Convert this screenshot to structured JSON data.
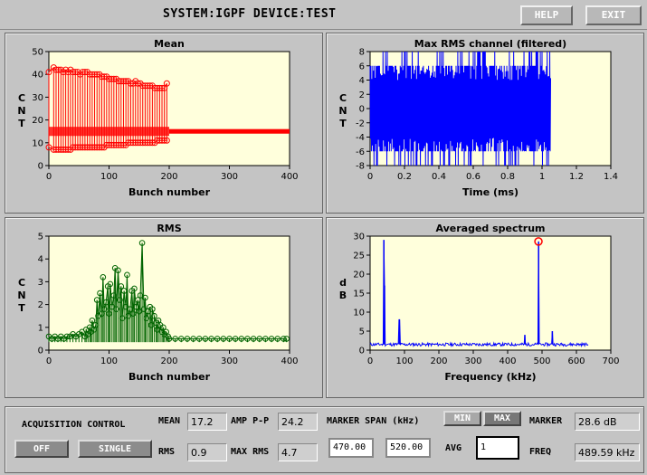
{
  "header": {
    "title": "SYSTEM:IGPF DEVICE:TEST",
    "help_label": "HELP",
    "exit_label": "EXIT"
  },
  "chart_data": [
    {
      "type": "line",
      "title": "Mean",
      "xlabel": "Bunch number",
      "ylabel": "CNT",
      "xlim": [
        0,
        400
      ],
      "ylim": [
        0,
        50
      ],
      "xticks": [
        0,
        100,
        200,
        300,
        400
      ],
      "yticks": [
        0,
        10,
        20,
        30,
        40,
        50
      ],
      "series": [
        {
          "x": [
            0,
            8,
            12,
            16,
            20,
            24,
            28,
            32,
            36,
            40,
            44,
            48,
            52,
            56,
            60,
            64,
            68,
            72,
            76,
            80,
            84,
            88,
            92,
            96,
            100,
            104,
            108,
            112,
            116,
            120,
            124,
            128,
            132,
            136,
            140,
            144,
            148,
            152,
            156,
            160,
            164,
            168,
            172,
            176,
            180,
            184,
            188,
            192,
            196
          ],
          "upper": [
            41,
            43,
            42,
            42,
            42,
            41,
            42,
            41,
            42,
            41,
            41,
            41,
            40,
            41,
            41,
            41,
            40,
            40,
            40,
            40,
            40,
            39,
            39,
            39,
            38,
            38,
            38,
            38,
            37,
            37,
            37,
            37,
            37,
            36,
            36,
            37,
            36,
            36,
            35,
            35,
            35,
            35,
            35,
            34,
            34,
            34,
            34,
            34,
            36
          ],
          "lower": [
            8,
            7,
            7,
            7,
            7,
            7,
            7,
            7,
            7,
            8,
            8,
            8,
            8,
            8,
            8,
            8,
            8,
            8,
            8,
            8,
            8,
            8,
            8,
            9,
            9,
            9,
            9,
            9,
            9,
            9,
            9,
            9,
            10,
            10,
            10,
            10,
            10,
            10,
            10,
            10,
            10,
            10,
            10,
            10,
            11,
            11,
            11,
            11,
            11
          ]
        }
      ],
      "baseline": 15,
      "tail_x": [
        200,
        400
      ],
      "tail_value": 15
    },
    {
      "type": "line",
      "title": "Max RMS channel (filtered)",
      "xlabel": "Time (ms)",
      "ylabel": "CNT",
      "xlim": [
        0,
        1.4
      ],
      "ylim": [
        -8,
        8
      ],
      "xticks": [
        0,
        0.2,
        0.4,
        0.6,
        0.8,
        1,
        1.2,
        1.4
      ],
      "yticks": [
        -8,
        -6,
        -4,
        -2,
        0,
        2,
        4,
        6,
        8
      ],
      "signal_range": [
        0,
        1.05
      ],
      "amplitude": 8
    },
    {
      "type": "line",
      "title": "RMS",
      "xlabel": "Bunch number",
      "ylabel": "CNT",
      "xlim": [
        0,
        400
      ],
      "ylim": [
        0,
        5
      ],
      "xticks": [
        0,
        100,
        200,
        300,
        400
      ],
      "yticks": [
        0,
        1,
        2,
        3,
        4,
        5
      ],
      "series": [
        {
          "x": [
            0,
            5,
            10,
            15,
            20,
            25,
            30,
            35,
            40,
            45,
            50,
            55,
            60,
            62,
            65,
            68,
            70,
            72,
            75,
            78,
            80,
            82,
            85,
            88,
            90,
            92,
            95,
            98,
            100,
            102,
            105,
            108,
            110,
            112,
            115,
            118,
            120,
            122,
            125,
            128,
            130,
            132,
            135,
            138,
            140,
            142,
            145,
            148,
            150,
            152,
            155,
            158,
            160,
            162,
            165,
            168,
            170,
            172,
            175,
            178,
            180,
            182,
            185,
            188,
            190,
            192,
            195,
            198,
            200,
            210,
            220,
            230,
            240,
            250,
            260,
            270,
            280,
            290,
            300,
            310,
            320,
            330,
            340,
            350,
            360,
            370,
            380,
            390,
            395
          ],
          "values": [
            0.6,
            0.5,
            0.6,
            0.5,
            0.6,
            0.5,
            0.6,
            0.6,
            0.7,
            0.6,
            0.7,
            0.8,
            0.6,
            0.9,
            0.7,
            1.0,
            0.8,
            1.3,
            0.9,
            1.1,
            2.2,
            1.5,
            2.5,
            1.6,
            3.2,
            1.8,
            2.1,
            2.8,
            1.6,
            2.9,
            1.9,
            2.4,
            3.6,
            1.8,
            3.5,
            2.2,
            2.8,
            1.4,
            2.6,
            1.9,
            3.3,
            1.5,
            1.8,
            2.6,
            1.6,
            2.7,
            1.9,
            2.2,
            1.7,
            2.4,
            4.7,
            1.8,
            2.3,
            1.4,
            1.7,
            1.9,
            1.1,
            1.8,
            1.5,
            1.2,
            0.9,
            1.3,
            1.1,
            0.8,
            1.0,
            0.7,
            0.8,
            0.6,
            0.5,
            0.5,
            0.5,
            0.5,
            0.5,
            0.5,
            0.5,
            0.5,
            0.5,
            0.5,
            0.5,
            0.5,
            0.5,
            0.5,
            0.5,
            0.5,
            0.5,
            0.5,
            0.5,
            0.5,
            0.5
          ]
        }
      ]
    },
    {
      "type": "line",
      "title": "Averaged spectrum",
      "xlabel": "Frequency (kHz)",
      "ylabel": "dB",
      "xlim": [
        0,
        700
      ],
      "ylim": [
        0,
        30
      ],
      "xticks": [
        0,
        100,
        200,
        300,
        400,
        500,
        600,
        700
      ],
      "yticks": [
        0,
        5,
        10,
        15,
        20,
        25,
        30
      ],
      "noise_floor": 1.5,
      "noise_range": [
        0,
        635
      ],
      "peaks": [
        {
          "x": 40,
          "y": 29
        },
        {
          "x": 42,
          "y": 17
        },
        {
          "x": 85,
          "y": 8
        },
        {
          "x": 450,
          "y": 4
        },
        {
          "x": 490,
          "y": 28.6
        },
        {
          "x": 530,
          "y": 5
        }
      ],
      "marker": {
        "x": 489.59,
        "y": 28.6
      }
    }
  ],
  "controls": {
    "acquisition_label": "ACQUISITION CONTROL",
    "off_label": "OFF",
    "single_label": "SINGLE",
    "mean_label": "MEAN",
    "mean_value": "17.2",
    "rms_label": "RMS",
    "rms_value": "0.9",
    "amp_label": "AMP P-P",
    "amp_value": "24.2",
    "maxrms_label": "MAX RMS",
    "maxrms_value": "4.7",
    "span_label": "MARKER SPAN (kHz)",
    "span_low": "470.00",
    "span_high": "520.00",
    "min_label": "MIN",
    "max_label": "MAX",
    "avg_label": "AVG",
    "avg_value": "1",
    "marker_label": "MARKER",
    "marker_value": "28.6 dB",
    "freq_label": "FREQ",
    "freq_value": "489.59 kHz"
  },
  "colors": {
    "plot_bg": "#ffffdc",
    "mean": "#ff0000",
    "rms": "#006400",
    "signal": "#0000ff",
    "marker": "#ff0000"
  }
}
